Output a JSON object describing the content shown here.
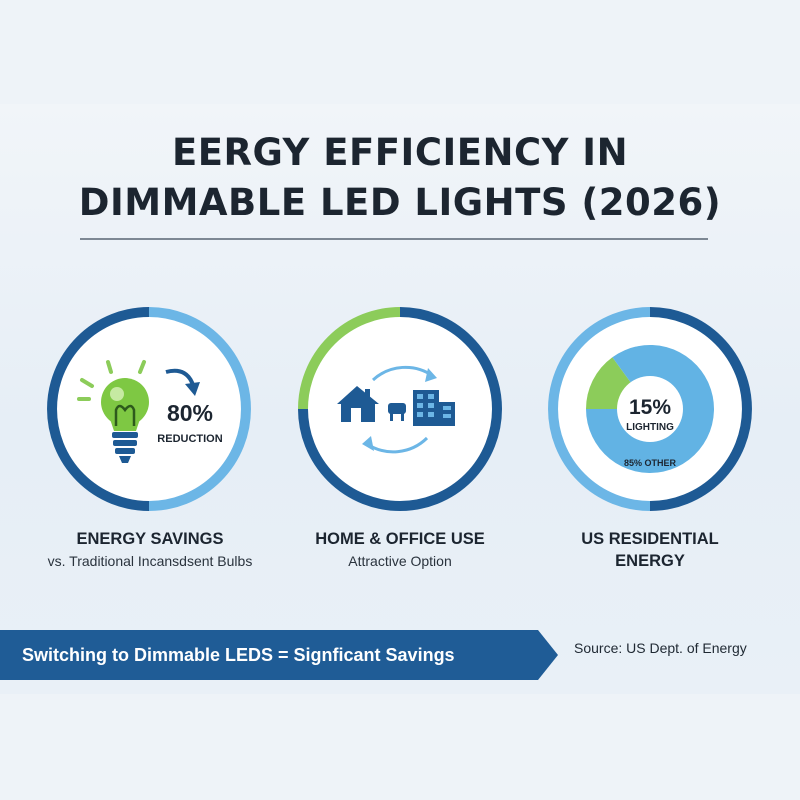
{
  "title": {
    "line1": "EERGY EFFICIENCY IN",
    "line2": "DIMMABLE LED LIGHTS (2026)"
  },
  "colors": {
    "dark_blue": "#1e5a94",
    "light_blue": "#6cb6e6",
    "green": "#8ccc5a",
    "banner": "#1f5c96"
  },
  "cards": [
    {
      "icon": "lightbulb-icon",
      "stat_value": "80%",
      "stat_label": "REDUCTION",
      "title": "ENERGY SAVINGS",
      "subtitle": "vs. Traditional Incansdsent Bulbs",
      "ring_segments": [
        {
          "color": "light_blue",
          "fraction": 0.5
        },
        {
          "color": "dark_blue",
          "fraction": 0.5
        }
      ]
    },
    {
      "icon": "home-office-icon",
      "title": "HOME & OFFICE USE",
      "subtitle": "Attractive Option",
      "ring_segments": [
        {
          "color": "dark_blue",
          "fraction": 0.75
        },
        {
          "color": "green",
          "fraction": 0.25
        }
      ]
    },
    {
      "title": "US RESIDENTIAL ENERGY",
      "title_lines": [
        "US RESIDENTIAL",
        "ENERGY"
      ],
      "ring_segments": [
        {
          "color": "dark_blue",
          "fraction": 0.5
        },
        {
          "color": "light_blue",
          "fraction": 0.5
        }
      ]
    }
  ],
  "chart_data": {
    "type": "pie",
    "title": "US RESIDENTIAL ENERGY",
    "slices": [
      {
        "label": "LIGHTING",
        "display": "15%",
        "value": 15,
        "color": "#8ccc5a"
      },
      {
        "label": "OTHER",
        "display": "85% OTHER",
        "value": 85,
        "color": "#62b3e4"
      }
    ]
  },
  "banner": {
    "text": "Switching to Dimmable LEDS = Signficant Savings"
  },
  "source": "Source: US Dept. of Energy"
}
